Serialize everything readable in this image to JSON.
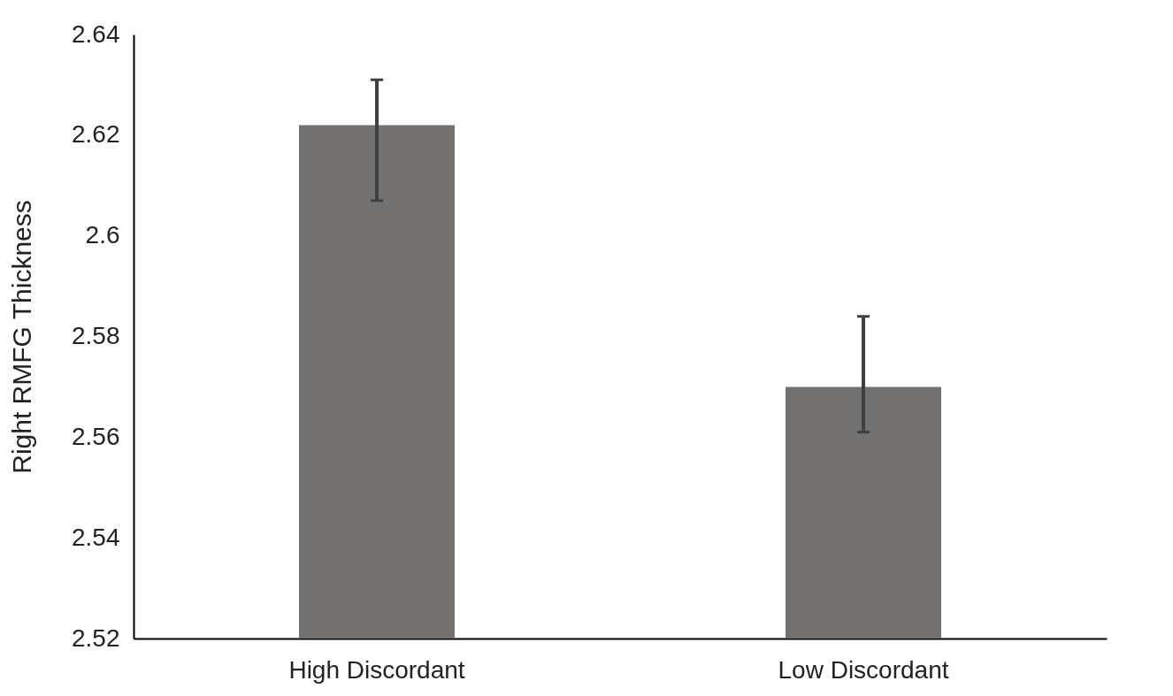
{
  "chart_data": {
    "type": "bar",
    "ylabel": "Right RMFG Thickness",
    "categories": [
      "High Discordant",
      "Low Discordant"
    ],
    "values": [
      2.622,
      2.57
    ],
    "color": "#737070",
    "errors": [
      [
        2.607,
        2.631
      ],
      [
        2.561,
        2.584
      ]
    ],
    "ylim": [
      2.52,
      2.64
    ],
    "yticks": [
      2.52,
      2.54,
      2.56,
      2.58,
      2.6,
      2.62,
      2.64
    ],
    "grid": false
  }
}
